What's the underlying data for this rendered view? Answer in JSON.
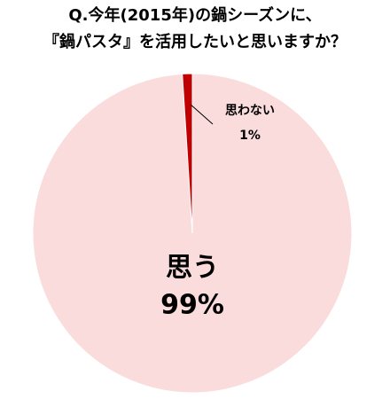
{
  "chart_data": {
    "type": "pie",
    "title": [
      "Q.今年(2015年)の鍋シーズンに、",
      "『鍋パスタ』を活用したいと思いますか？"
    ],
    "categories": [
      "思う",
      "思わない"
    ],
    "values": [
      99,
      1
    ],
    "value_labels": [
      "99%",
      "1%"
    ],
    "colors": [
      "#fadcdc",
      "#c00000"
    ]
  }
}
